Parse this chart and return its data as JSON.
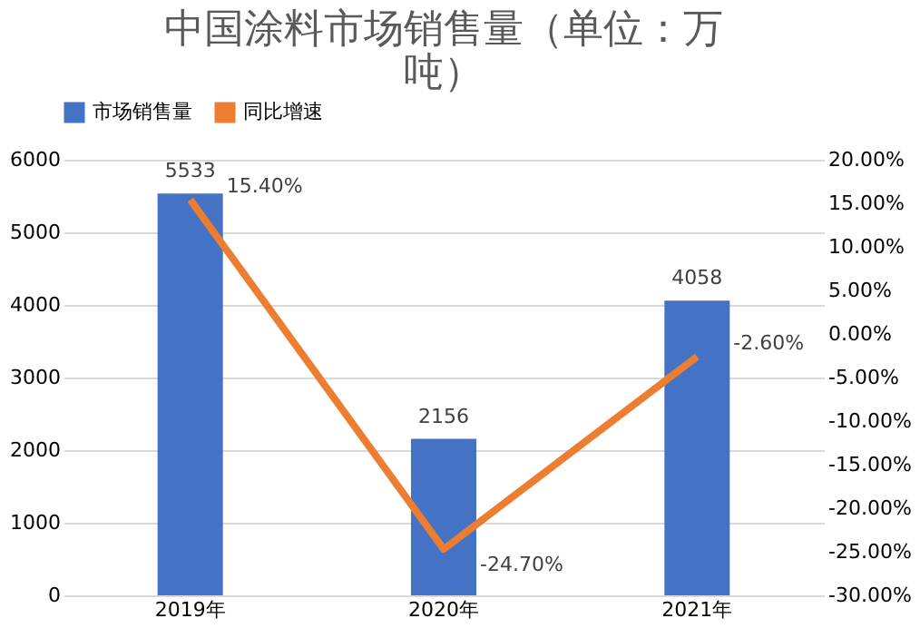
{
  "chart_data": {
    "type": "bar",
    "title": "中国涂料市场销售量（单位：万吨）",
    "categories": [
      "2019年",
      "2020年",
      "2021年"
    ],
    "series": [
      {
        "name": "市场销售量",
        "color": "#4472c4",
        "values": [
          5533,
          2156,
          4058
        ]
      },
      {
        "name": "同比增速",
        "type": "line",
        "axis": "y2",
        "color": "#ed7d31",
        "values": [
          15.4,
          -24.7,
          -2.6
        ],
        "value_labels": [
          "15.40%",
          "-24.70%",
          "-2.60%"
        ]
      }
    ],
    "data_labels": true,
    "ylim": [
      0,
      6000
    ],
    "yticks": [
      0,
      1000,
      2000,
      3000,
      4000,
      5000,
      6000
    ],
    "y2lim": [
      -30,
      20
    ],
    "y2ticks": [
      {
        "value": -30,
        "label": "-30.00%"
      },
      {
        "value": -25,
        "label": "-25.00%"
      },
      {
        "value": -20,
        "label": "-20.00%"
      },
      {
        "value": -15,
        "label": "-15.00%"
      },
      {
        "value": -10,
        "label": "-10.00%"
      },
      {
        "value": -5,
        "label": "-5.00%"
      },
      {
        "value": 0,
        "label": "0.00%"
      },
      {
        "value": 5,
        "label": "5.00%"
      },
      {
        "value": 10,
        "label": "10.00%"
      },
      {
        "value": 15,
        "label": "15.00%"
      },
      {
        "value": 20,
        "label": "20.00%"
      }
    ],
    "grid": "y",
    "legend": "top",
    "marker": "none",
    "line_style": "solid"
  }
}
